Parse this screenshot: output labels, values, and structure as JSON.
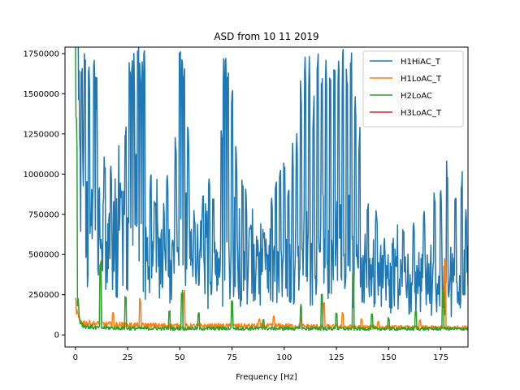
{
  "chart_data": {
    "type": "line",
    "title": "ASD from 10 11 2019",
    "xlabel": "Frequency [Hz]",
    "ylabel": "",
    "xlim": [
      -5,
      188
    ],
    "ylim": [
      -75000,
      1790000
    ],
    "xticks": [
      0,
      25,
      50,
      75,
      100,
      125,
      150,
      175
    ],
    "xtick_labels": [
      "0",
      "25",
      "50",
      "75",
      "100",
      "125",
      "150",
      "175"
    ],
    "yticks": [
      0,
      250000,
      500000,
      750000,
      1000000,
      1250000,
      1500000,
      1750000
    ],
    "ytick_labels": [
      "0",
      "250000",
      "500000",
      "750000",
      "1000000",
      "1250000",
      "1500000",
      "1750000"
    ],
    "grid": false,
    "legend_position": "top-right",
    "series": [
      {
        "name": "H1HiAC_T",
        "color": "#1f77b4",
        "baseline": [
          [
            0,
            1790000
          ],
          [
            1,
            1790000
          ],
          [
            2,
            900000
          ],
          [
            4,
            700000
          ],
          [
            6,
            620000
          ],
          [
            10,
            520000
          ],
          [
            15,
            470000
          ],
          [
            20,
            480000
          ],
          [
            25,
            560000
          ],
          [
            30,
            520000
          ],
          [
            35,
            460000
          ],
          [
            45,
            420000
          ],
          [
            55,
            380000
          ],
          [
            65,
            360000
          ],
          [
            75,
            370000
          ],
          [
            90,
            380000
          ],
          [
            100,
            370000
          ],
          [
            110,
            380000
          ],
          [
            120,
            400000
          ],
          [
            130,
            390000
          ],
          [
            140,
            340000
          ],
          [
            150,
            300000
          ],
          [
            160,
            270000
          ],
          [
            170,
            260000
          ],
          [
            175,
            250000
          ],
          [
            180,
            250000
          ],
          [
            188,
            260000
          ]
        ],
        "peaks": [
          [
            3,
            1790000
          ],
          [
            4.5,
            1790000
          ],
          [
            6.5,
            1790000
          ],
          [
            9,
            1790000
          ],
          [
            10,
            1650000
          ],
          [
            14,
            1200000
          ],
          [
            17,
            1100000
          ],
          [
            22,
            900000
          ],
          [
            24,
            1400000
          ],
          [
            26,
            1790000
          ],
          [
            27,
            1790000
          ],
          [
            28,
            1790000
          ],
          [
            30,
            1790000
          ],
          [
            31,
            1790000
          ],
          [
            32,
            1790000
          ],
          [
            33,
            1790000
          ],
          [
            36,
            1000000
          ],
          [
            38,
            900000
          ],
          [
            44,
            1000000
          ],
          [
            48,
            1300000
          ],
          [
            50,
            1790000
          ],
          [
            51,
            1790000
          ],
          [
            52,
            1790000
          ],
          [
            54,
            1300000
          ],
          [
            57,
            800000
          ],
          [
            61,
            900000
          ],
          [
            64,
            1000000
          ],
          [
            66,
            900000
          ],
          [
            70,
            1300000
          ],
          [
            71,
            1790000
          ],
          [
            72,
            1790000
          ],
          [
            73,
            1790000
          ],
          [
            75,
            1600000
          ],
          [
            77,
            1200000
          ],
          [
            80,
            1000000
          ],
          [
            84,
            700000
          ],
          [
            90,
            700000
          ],
          [
            94,
            900000
          ],
          [
            96,
            1000000
          ],
          [
            98,
            1100000
          ],
          [
            100,
            1100000
          ],
          [
            102,
            1000000
          ],
          [
            104,
            1200000
          ],
          [
            106,
            1300000
          ],
          [
            108,
            1600000
          ],
          [
            110,
            1790000
          ],
          [
            112,
            1790000
          ],
          [
            114,
            1500000
          ],
          [
            116,
            1790000
          ],
          [
            118,
            1790000
          ],
          [
            120,
            1790000
          ],
          [
            122,
            1600000
          ],
          [
            124,
            1700000
          ],
          [
            126,
            1790000
          ],
          [
            128,
            1790000
          ],
          [
            130,
            1700000
          ],
          [
            132,
            1790000
          ],
          [
            134,
            1500000
          ],
          [
            136,
            1300000
          ],
          [
            140,
            900000
          ],
          [
            144,
            800000
          ],
          [
            148,
            600000
          ],
          [
            152,
            650000
          ],
          [
            157,
            700000
          ],
          [
            162,
            750000
          ],
          [
            167,
            800000
          ],
          [
            172,
            900000
          ],
          [
            175,
            900000
          ],
          [
            178,
            1100000
          ],
          [
            182,
            900000
          ],
          [
            185,
            1050000
          ],
          [
            187,
            800000
          ]
        ]
      },
      {
        "name": "H1LoAC_T",
        "color": "#ff7f0e",
        "baseline": [
          [
            0,
            200000
          ],
          [
            1,
            120000
          ],
          [
            2,
            90000
          ],
          [
            4,
            75000
          ],
          [
            8,
            70000
          ],
          [
            15,
            65000
          ],
          [
            30,
            60000
          ],
          [
            50,
            55000
          ],
          [
            80,
            55000
          ],
          [
            100,
            55000
          ],
          [
            130,
            50000
          ],
          [
            160,
            45000
          ],
          [
            188,
            45000
          ]
        ],
        "peaks": [
          [
            12,
            480000
          ],
          [
            18,
            140000
          ],
          [
            31,
            230000
          ],
          [
            52,
            300000
          ],
          [
            75,
            160000
          ],
          [
            88,
            100000
          ],
          [
            95,
            120000
          ],
          [
            108,
            110000
          ],
          [
            119,
            200000
          ],
          [
            128,
            140000
          ],
          [
            137,
            100000
          ],
          [
            145,
            90000
          ],
          [
            165,
            95000
          ],
          [
            177,
            480000
          ]
        ]
      },
      {
        "name": "H2LoAC",
        "color": "#2ca02c",
        "baseline": [
          [
            0,
            1790000
          ],
          [
            0.5,
            1790000
          ],
          [
            1,
            250000
          ],
          [
            2,
            90000
          ],
          [
            4,
            55000
          ],
          [
            10,
            45000
          ],
          [
            30,
            40000
          ],
          [
            60,
            40000
          ],
          [
            100,
            40000
          ],
          [
            150,
            38000
          ],
          [
            188,
            38000
          ]
        ],
        "peaks": [
          [
            12,
            460000
          ],
          [
            24,
            250000
          ],
          [
            45,
            150000
          ],
          [
            51,
            280000
          ],
          [
            59,
            140000
          ],
          [
            75,
            240000
          ],
          [
            90,
            100000
          ],
          [
            108,
            200000
          ],
          [
            118,
            280000
          ],
          [
            125,
            150000
          ],
          [
            133,
            400000
          ],
          [
            142,
            130000
          ],
          [
            150,
            110000
          ],
          [
            163,
            150000
          ],
          [
            176,
            300000
          ]
        ]
      },
      {
        "name": "H3LoAC_T",
        "color": "#d62728",
        "baseline": [],
        "peaks": []
      }
    ]
  }
}
